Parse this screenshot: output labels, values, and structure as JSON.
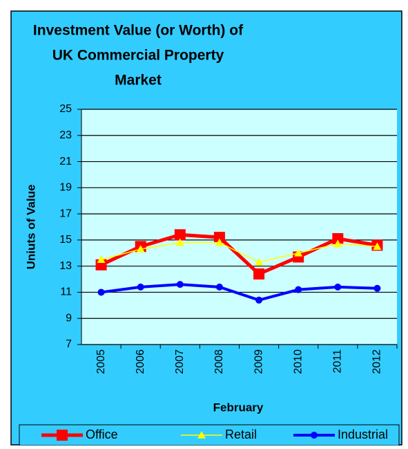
{
  "chart_data": {
    "type": "line",
    "title_lines": [
      "Investment Value (or Worth) of",
      "UK Commercial Property",
      "Market"
    ],
    "x_label": "February",
    "y_label": "Uniuts of Value",
    "categories": [
      "2005",
      "2006",
      "2007",
      "2008",
      "2009",
      "2010",
      "2011",
      "2012"
    ],
    "series": [
      {
        "name": "Office",
        "color": "#ff0000",
        "marker": "square",
        "values": [
          13.1,
          14.5,
          15.4,
          15.2,
          12.4,
          13.7,
          15.1,
          14.6
        ]
      },
      {
        "name": "Retail",
        "color": "#ffff00",
        "marker": "triangle",
        "values": [
          13.5,
          14.3,
          14.8,
          14.8,
          13.3,
          14.0,
          14.7,
          14.5
        ]
      },
      {
        "name": "Industrial",
        "color": "#0000ff",
        "marker": "circle",
        "values": [
          11.0,
          11.4,
          11.6,
          11.4,
          10.4,
          11.2,
          11.4,
          11.3
        ]
      }
    ],
    "ylim": [
      7,
      25
    ],
    "yticks": [
      7,
      9,
      11,
      13,
      15,
      17,
      19,
      21,
      23,
      25
    ],
    "grid": true,
    "legend": "bottom"
  }
}
